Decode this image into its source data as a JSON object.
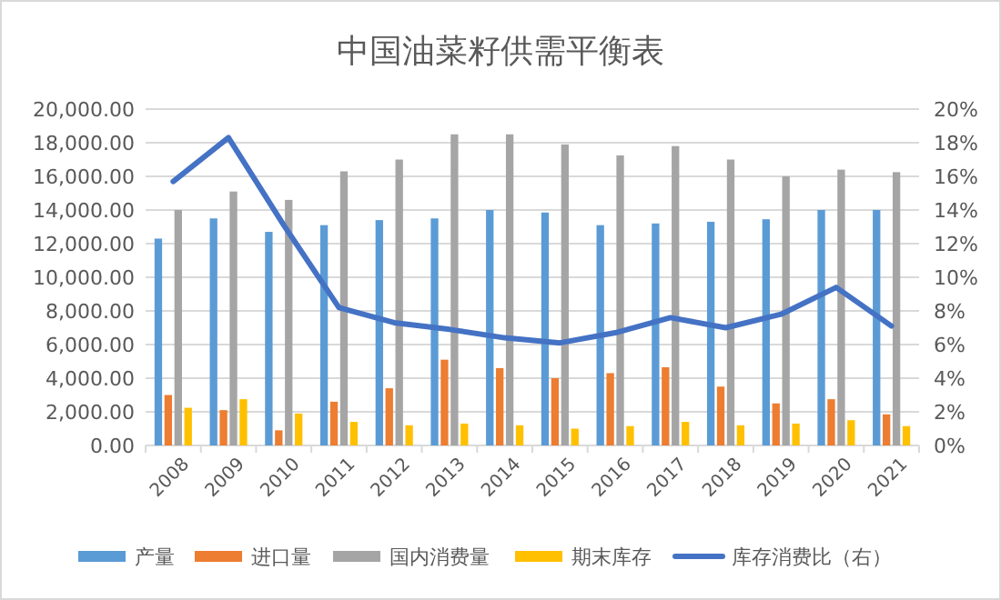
{
  "chart_data": {
    "type": "bar",
    "title": "中国油菜籽供需平衡表",
    "categories": [
      "2008",
      "2009",
      "2010",
      "2011",
      "2012",
      "2013",
      "2014",
      "2015",
      "2016",
      "2017",
      "2018",
      "2019",
      "2020",
      "2021"
    ],
    "series": [
      {
        "name": "产量",
        "color": "#5b9bd5",
        "values": [
          12300,
          13500,
          12700,
          13100,
          13400,
          13500,
          14000,
          13850,
          13100,
          13200,
          13300,
          13450,
          14000,
          14000
        ]
      },
      {
        "name": "进口量",
        "color": "#ed7d31",
        "values": [
          3000,
          2100,
          900,
          2600,
          3400,
          5100,
          4600,
          4000,
          4300,
          4650,
          3500,
          2500,
          2750,
          1850
        ]
      },
      {
        "name": "国内消费量",
        "color": "#a5a5a5",
        "values": [
          14000,
          15100,
          14600,
          16300,
          17000,
          18500,
          18500,
          17900,
          17250,
          17800,
          17000,
          16000,
          16400,
          16250
        ]
      },
      {
        "name": "期末库存",
        "color": "#ffc000",
        "values": [
          2240,
          2750,
          1900,
          1400,
          1200,
          1300,
          1200,
          1000,
          1150,
          1400,
          1200,
          1300,
          1500,
          1150
        ]
      },
      {
        "name": "库存消费比（右）",
        "color": "#4472c4",
        "type": "line",
        "axis": "y2",
        "values": [
          15.7,
          18.3,
          13.1,
          8.2,
          7.3,
          6.9,
          6.4,
          6.1,
          6.7,
          7.6,
          7.0,
          7.8,
          9.4,
          7.1
        ]
      }
    ],
    "ylim": [
      0,
      20000
    ],
    "yticks": [
      {
        "value": 0,
        "label": "0.00"
      },
      {
        "value": 2000,
        "label": "2,000.00"
      },
      {
        "value": 4000,
        "label": "4,000.00"
      },
      {
        "value": 6000,
        "label": "6,000.00"
      },
      {
        "value": 8000,
        "label": "8,000.00"
      },
      {
        "value": 10000,
        "label": "10,000.00"
      },
      {
        "value": 12000,
        "label": "12,000.00"
      },
      {
        "value": 14000,
        "label": "14,000.00"
      },
      {
        "value": 16000,
        "label": "16,000.00"
      },
      {
        "value": 18000,
        "label": "18,000.00"
      },
      {
        "value": 20000,
        "label": "20,000.00"
      }
    ],
    "y2lim": [
      0,
      20
    ],
    "y2ticks": [
      {
        "value": 0,
        "label": "0%"
      },
      {
        "value": 2,
        "label": "2%"
      },
      {
        "value": 4,
        "label": "4%"
      },
      {
        "value": 6,
        "label": "6%"
      },
      {
        "value": 8,
        "label": "8%"
      },
      {
        "value": 10,
        "label": "10%"
      },
      {
        "value": 12,
        "label": "12%"
      },
      {
        "value": 14,
        "label": "14%"
      },
      {
        "value": 16,
        "label": "16%"
      },
      {
        "value": 18,
        "label": "18%"
      },
      {
        "value": 20,
        "label": "20%"
      }
    ],
    "grid": "y",
    "legend": "bottom"
  }
}
